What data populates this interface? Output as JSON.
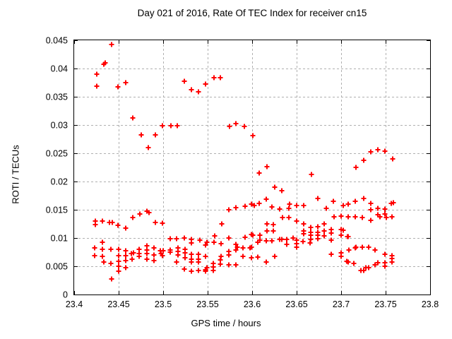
{
  "title": "Day 021 of 2016, Rate Of TEC Index for receiver cn15",
  "colors": {
    "marker": "#ff0000",
    "grid": "#b0b0b0",
    "axis": "#000000",
    "background": "#ffffff"
  },
  "chart_data": {
    "type": "scatter",
    "title": "Day 021 of 2016, Rate Of TEC Index for receiver cn15",
    "xlabel": "GPS time / hours",
    "ylabel": "ROTI / TECUs",
    "xlim": [
      23.4,
      23.8
    ],
    "ylim": [
      0,
      0.045
    ],
    "xticks": [
      23.4,
      23.45,
      23.5,
      23.55,
      23.6,
      23.65,
      23.7,
      23.75,
      23.8
    ],
    "xtick_labels": [
      "23.4",
      "23.45",
      "23.5",
      "23.55",
      "23.6",
      "23.65",
      "23.7",
      "23.75",
      "23.8"
    ],
    "yticks": [
      0,
      0.005,
      0.01,
      0.015,
      0.02,
      0.025,
      0.03,
      0.035,
      0.04,
      0.045
    ],
    "ytick_labels": [
      "0",
      "0.005",
      "0.01",
      "0.015",
      "0.02",
      "0.025",
      "0.03",
      "0.035",
      "0.04",
      "0.045"
    ],
    "grid": true,
    "legend": false,
    "marker": {
      "shape": "plus",
      "size": 7,
      "color": "#ff0000"
    },
    "series": [
      {
        "name": "ROTI",
        "points": [
          [
            23.425,
            0.039
          ],
          [
            23.425,
            0.0369
          ],
          [
            23.433,
            0.0408
          ],
          [
            23.435,
            0.041
          ],
          [
            23.442,
            0.0443
          ],
          [
            23.449,
            0.0367
          ],
          [
            23.458,
            0.0375
          ],
          [
            23.524,
            0.0378
          ],
          [
            23.532,
            0.0363
          ],
          [
            23.54,
            0.0359
          ],
          [
            23.548,
            0.0372
          ],
          [
            23.557,
            0.0384
          ],
          [
            23.564,
            0.0384
          ],
          [
            23.466,
            0.0312
          ],
          [
            23.499,
            0.0299
          ],
          [
            23.509,
            0.0299
          ],
          [
            23.516,
            0.0299
          ],
          [
            23.575,
            0.0297
          ],
          [
            23.582,
            0.0303
          ],
          [
            23.591,
            0.0298
          ],
          [
            23.601,
            0.0281
          ],
          [
            23.475,
            0.0282
          ],
          [
            23.491,
            0.0282
          ],
          [
            23.483,
            0.026
          ],
          [
            23.608,
            0.0215
          ],
          [
            23.617,
            0.0226
          ],
          [
            23.667,
            0.0213
          ],
          [
            23.717,
            0.0225
          ],
          [
            23.725,
            0.0238
          ],
          [
            23.733,
            0.0252
          ],
          [
            23.741,
            0.0256
          ],
          [
            23.749,
            0.0254
          ],
          [
            23.758,
            0.024
          ],
          [
            23.625,
            0.019
          ],
          [
            23.633,
            0.0184
          ],
          [
            23.616,
            0.0169
          ],
          [
            23.674,
            0.017
          ],
          [
            23.691,
            0.0165
          ],
          [
            23.716,
            0.0165
          ],
          [
            23.725,
            0.017
          ],
          [
            23.574,
            0.015
          ],
          [
            23.582,
            0.0154
          ],
          [
            23.592,
            0.0156
          ],
          [
            23.599,
            0.016
          ],
          [
            23.602,
            0.0158
          ],
          [
            23.608,
            0.0161
          ],
          [
            23.622,
            0.0155
          ],
          [
            23.631,
            0.0151
          ],
          [
            23.641,
            0.0152
          ],
          [
            23.642,
            0.016
          ],
          [
            23.65,
            0.0158
          ],
          [
            23.658,
            0.0158
          ],
          [
            23.683,
            0.0153
          ],
          [
            23.702,
            0.0158
          ],
          [
            23.708,
            0.016
          ],
          [
            23.733,
            0.0161
          ],
          [
            23.756,
            0.0161
          ],
          [
            23.759,
            0.0162
          ],
          [
            23.733,
            0.015
          ],
          [
            23.741,
            0.0152
          ],
          [
            23.749,
            0.0151
          ],
          [
            23.424,
            0.013
          ],
          [
            23.424,
            0.0124
          ],
          [
            23.432,
            0.013
          ],
          [
            23.44,
            0.0128
          ],
          [
            23.443,
            0.0127
          ],
          [
            23.449,
            0.0122
          ],
          [
            23.458,
            0.0118
          ],
          [
            23.466,
            0.0136
          ],
          [
            23.474,
            0.0143
          ],
          [
            23.482,
            0.0147
          ],
          [
            23.484,
            0.0145
          ],
          [
            23.491,
            0.0127
          ],
          [
            23.499,
            0.0126
          ],
          [
            23.566,
            0.0125
          ],
          [
            23.634,
            0.0136
          ],
          [
            23.641,
            0.0136
          ],
          [
            23.65,
            0.013
          ],
          [
            23.692,
            0.0138
          ],
          [
            23.7,
            0.0139
          ],
          [
            23.708,
            0.0138
          ],
          [
            23.716,
            0.0138
          ],
          [
            23.724,
            0.0136
          ],
          [
            23.733,
            0.0131
          ],
          [
            23.741,
            0.0141
          ],
          [
            23.744,
            0.0137
          ],
          [
            23.749,
            0.0143
          ],
          [
            23.751,
            0.0136
          ],
          [
            23.757,
            0.0138
          ],
          [
            23.617,
            0.0125
          ],
          [
            23.624,
            0.0124
          ],
          [
            23.658,
            0.0125
          ],
          [
            23.666,
            0.0119
          ],
          [
            23.674,
            0.012
          ],
          [
            23.681,
            0.0125
          ],
          [
            23.601,
            0.0105
          ],
          [
            23.609,
            0.0105
          ],
          [
            23.609,
            0.0096
          ],
          [
            23.617,
            0.0112
          ],
          [
            23.624,
            0.0112
          ],
          [
            23.658,
            0.0113
          ],
          [
            23.658,
            0.0107
          ],
          [
            23.666,
            0.011
          ],
          [
            23.666,
            0.0105
          ],
          [
            23.674,
            0.011
          ],
          [
            23.674,
            0.0105
          ],
          [
            23.681,
            0.0113
          ],
          [
            23.681,
            0.0104
          ],
          [
            23.689,
            0.0115
          ],
          [
            23.689,
            0.0109
          ],
          [
            23.7,
            0.0115
          ],
          [
            23.7,
            0.0105
          ],
          [
            23.702,
            0.0114
          ],
          [
            23.707,
            0.0103
          ],
          [
            23.708,
            0.0102
          ],
          [
            23.508,
            0.0099
          ],
          [
            23.515,
            0.0099
          ],
          [
            23.524,
            0.01
          ],
          [
            23.532,
            0.0098
          ],
          [
            23.532,
            0.0091
          ],
          [
            23.541,
            0.0096
          ],
          [
            23.549,
            0.0092
          ],
          [
            23.548,
            0.0088
          ],
          [
            23.558,
            0.0104
          ],
          [
            23.557,
            0.0093
          ],
          [
            23.565,
            0.009
          ],
          [
            23.574,
            0.01
          ],
          [
            23.582,
            0.0089
          ],
          [
            23.592,
            0.0101
          ],
          [
            23.599,
            0.0106
          ],
          [
            23.606,
            0.0093
          ],
          [
            23.616,
            0.0095
          ],
          [
            23.622,
            0.0095
          ],
          [
            23.631,
            0.0097
          ],
          [
            23.633,
            0.0097
          ],
          [
            23.639,
            0.0098
          ],
          [
            23.639,
            0.0089
          ],
          [
            23.646,
            0.01
          ],
          [
            23.65,
            0.0096
          ],
          [
            23.65,
            0.009
          ],
          [
            23.657,
            0.0094
          ],
          [
            23.665,
            0.0091
          ],
          [
            23.666,
            0.0098
          ],
          [
            23.674,
            0.0099
          ],
          [
            23.689,
            0.0096
          ],
          [
            23.423,
            0.0083
          ],
          [
            23.432,
            0.0092
          ],
          [
            23.432,
            0.008
          ],
          [
            23.441,
            0.008
          ],
          [
            23.45,
            0.008
          ],
          [
            23.458,
            0.0078
          ],
          [
            23.473,
            0.008
          ],
          [
            23.482,
            0.0086
          ],
          [
            23.482,
            0.0079
          ],
          [
            23.49,
            0.0083
          ],
          [
            23.497,
            0.0078
          ],
          [
            23.5,
            0.0078
          ],
          [
            23.508,
            0.0079
          ],
          [
            23.517,
            0.0082
          ],
          [
            23.525,
            0.008
          ],
          [
            23.574,
            0.0076
          ],
          [
            23.582,
            0.0079
          ],
          [
            23.583,
            0.0084
          ],
          [
            23.59,
            0.0082
          ],
          [
            23.598,
            0.0083
          ],
          [
            23.599,
            0.0084
          ],
          [
            23.65,
            0.0084
          ],
          [
            23.7,
            0.0074
          ],
          [
            23.709,
            0.0079
          ],
          [
            23.716,
            0.0083
          ],
          [
            23.717,
            0.0084
          ],
          [
            23.724,
            0.0084
          ],
          [
            23.731,
            0.0084
          ],
          [
            23.738,
            0.0079
          ],
          [
            23.423,
            0.0069
          ],
          [
            23.432,
            0.0068
          ],
          [
            23.45,
            0.0069
          ],
          [
            23.458,
            0.0069
          ],
          [
            23.464,
            0.0073
          ],
          [
            23.467,
            0.0074
          ],
          [
            23.465,
            0.0062
          ],
          [
            23.473,
            0.0073
          ],
          [
            23.473,
            0.0067
          ],
          [
            23.482,
            0.0072
          ],
          [
            23.482,
            0.0062
          ],
          [
            23.49,
            0.007
          ],
          [
            23.49,
            0.006
          ],
          [
            23.498,
            0.0072
          ],
          [
            23.499,
            0.0069
          ],
          [
            23.508,
            0.0075
          ],
          [
            23.517,
            0.0076
          ],
          [
            23.517,
            0.007
          ],
          [
            23.525,
            0.0074
          ],
          [
            23.525,
            0.0065
          ],
          [
            23.532,
            0.0071
          ],
          [
            23.532,
            0.0063
          ],
          [
            23.54,
            0.0071
          ],
          [
            23.54,
            0.0063
          ],
          [
            23.548,
            0.0067
          ],
          [
            23.564,
            0.0061
          ],
          [
            23.565,
            0.0067
          ],
          [
            23.574,
            0.007
          ],
          [
            23.59,
            0.0068
          ],
          [
            23.599,
            0.0065
          ],
          [
            23.606,
            0.0066
          ],
          [
            23.625,
            0.0068
          ],
          [
            23.689,
            0.0071
          ],
          [
            23.7,
            0.0068
          ],
          [
            23.706,
            0.0059
          ],
          [
            23.749,
            0.0071
          ],
          [
            23.757,
            0.0069
          ],
          [
            23.757,
            0.0064
          ],
          [
            23.433,
            0.0057
          ],
          [
            23.441,
            0.0055
          ],
          [
            23.45,
            0.0059
          ],
          [
            23.45,
            0.005
          ],
          [
            23.45,
            0.0041
          ],
          [
            23.458,
            0.006
          ],
          [
            23.458,
            0.0047
          ],
          [
            23.515,
            0.0057
          ],
          [
            23.524,
            0.0045
          ],
          [
            23.532,
            0.0058
          ],
          [
            23.532,
            0.0041
          ],
          [
            23.54,
            0.0057
          ],
          [
            23.54,
            0.0043
          ],
          [
            23.548,
            0.0044
          ],
          [
            23.548,
            0.0041
          ],
          [
            23.549,
            0.0047
          ],
          [
            23.556,
            0.0049
          ],
          [
            23.556,
            0.0043
          ],
          [
            23.556,
            0.0055
          ],
          [
            23.564,
            0.0054
          ],
          [
            23.574,
            0.0052
          ],
          [
            23.582,
            0.0052
          ],
          [
            23.616,
            0.0057
          ],
          [
            23.708,
            0.0057
          ],
          [
            23.714,
            0.0055
          ],
          [
            23.722,
            0.0043
          ],
          [
            23.725,
            0.0042
          ],
          [
            23.728,
            0.0048
          ],
          [
            23.731,
            0.0048
          ],
          [
            23.738,
            0.0052
          ],
          [
            23.741,
            0.0056
          ],
          [
            23.749,
            0.0056
          ],
          [
            23.749,
            0.005
          ],
          [
            23.757,
            0.0058
          ],
          [
            23.442,
            0.0028
          ]
        ]
      }
    ]
  }
}
